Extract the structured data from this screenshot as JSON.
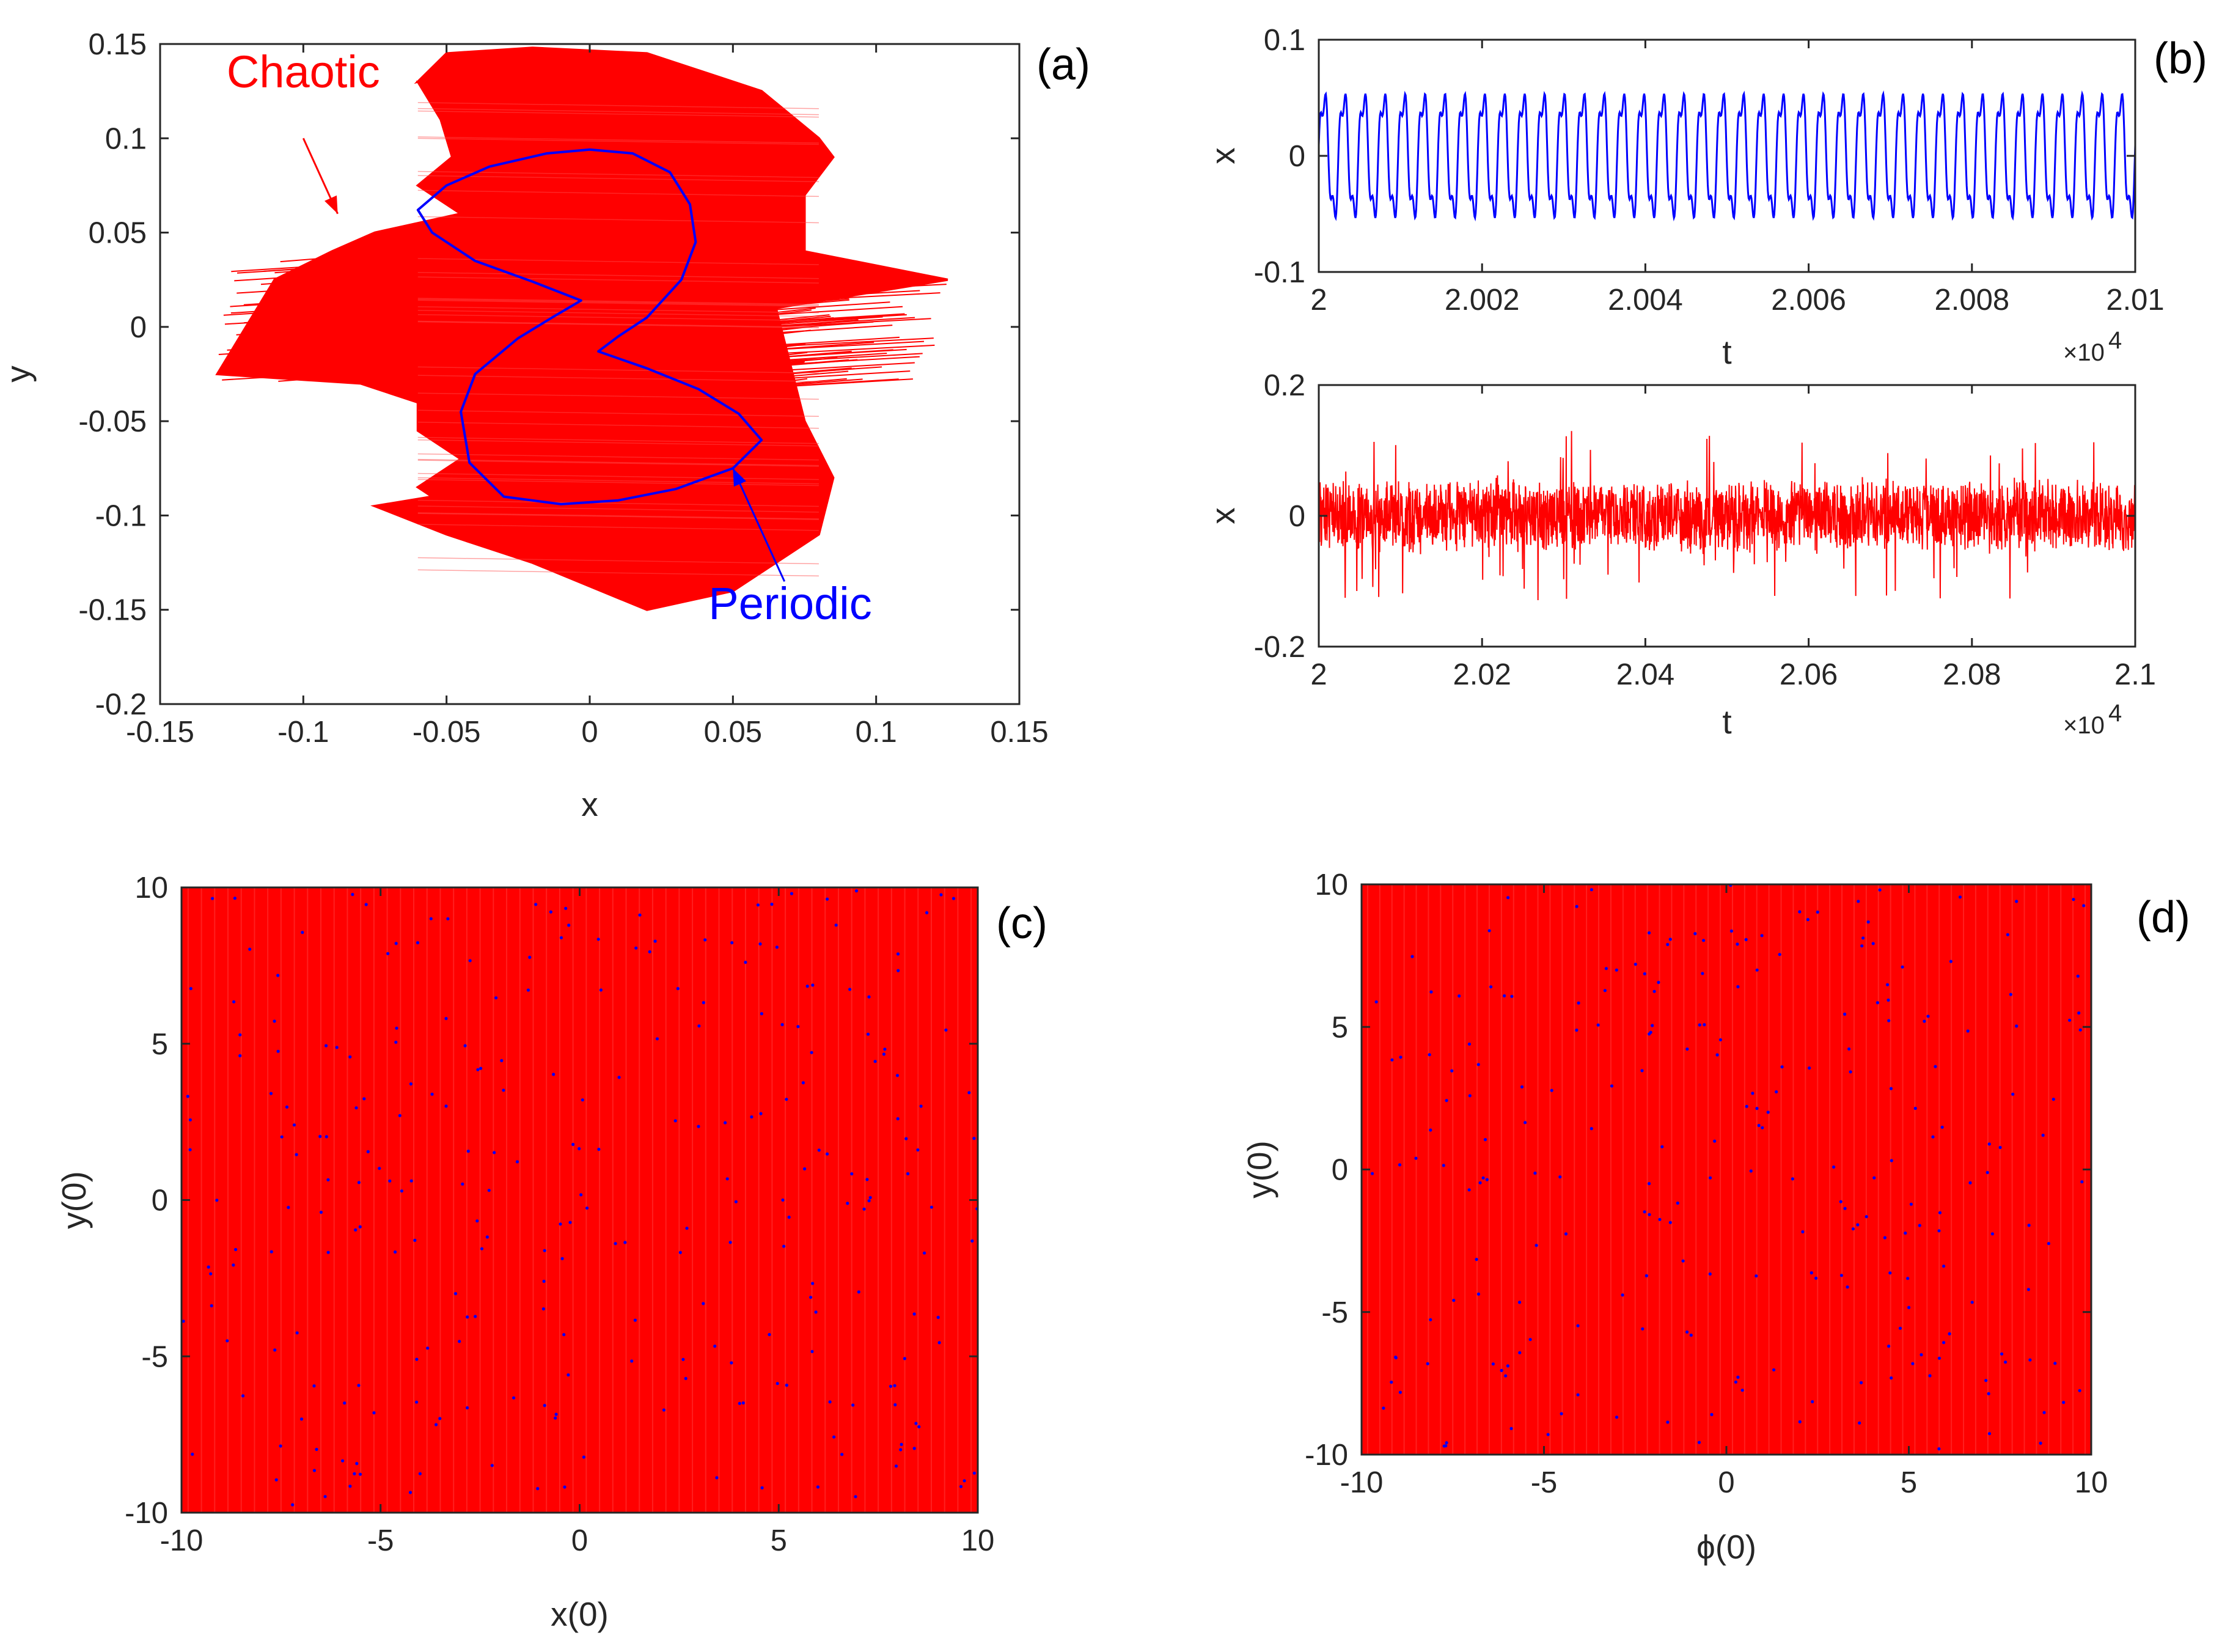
{
  "colors": {
    "periodic": "#0000ff",
    "chaotic": "#ff0000",
    "axis": "#262626"
  },
  "chart_data": [
    {
      "panel": "a",
      "label": "(a)",
      "type": "line",
      "title": "",
      "xlabel": "x",
      "ylabel": "y",
      "xlim": [
        -0.15,
        0.15
      ],
      "ylim": [
        -0.2,
        0.15
      ],
      "xticks": [
        -0.15,
        -0.1,
        -0.05,
        0,
        0.05,
        0.1,
        0.15
      ],
      "xtick_labels": [
        "-0.15",
        "-0.1",
        "-0.05",
        "0",
        "0.05",
        "0.1",
        "0.15"
      ],
      "yticks": [
        -0.2,
        -0.15,
        -0.1,
        -0.05,
        0,
        0.05,
        0.1,
        0.15
      ],
      "ytick_labels": [
        "-0.2",
        "-0.15",
        "-0.1",
        "-0.05",
        "0",
        "0.05",
        "0.1",
        "0.15"
      ],
      "series": [
        {
          "name": "Chaotic",
          "color": "#ff0000",
          "x": [
            0.0,
            -0.06,
            -0.052,
            -0.048,
            -0.06,
            -0.045,
            -0.075,
            -0.09,
            -0.11,
            -0.13,
            -0.08,
            -0.06,
            -0.06,
            -0.045,
            -0.06,
            -0.055,
            -0.075,
            -0.05,
            -0.02,
            0.02,
            0.05,
            0.08,
            0.085,
            0.075,
            0.07,
            0.065,
            0.125,
            0.075,
            0.075,
            0.085,
            0.08,
            0.06,
            0.02,
            -0.02,
            -0.05,
            -0.06,
            -0.045,
            0.0
          ],
          "y": [
            0.145,
            0.13,
            0.11,
            0.09,
            0.075,
            0.06,
            0.05,
            0.04,
            0.025,
            -0.025,
            -0.03,
            -0.04,
            -0.055,
            -0.07,
            -0.085,
            -0.09,
            -0.095,
            -0.11,
            -0.125,
            -0.15,
            -0.14,
            -0.11,
            -0.08,
            -0.05,
            -0.02,
            0.01,
            0.025,
            0.04,
            0.07,
            0.09,
            0.1,
            0.125,
            0.145,
            0.148,
            0.145,
            0.13,
            0.135,
            0.145
          ]
        },
        {
          "name": "Periodic",
          "color": "#0000ff",
          "x": [
            -0.06,
            -0.05,
            -0.035,
            -0.015,
            0.0,
            0.015,
            0.028,
            0.035,
            0.037,
            0.032,
            0.02,
            0.01,
            0.003,
            0.02,
            0.038,
            0.052,
            0.06,
            0.05,
            0.03,
            0.01,
            -0.01,
            -0.03,
            -0.042,
            -0.045,
            -0.04,
            -0.025,
            -0.012,
            -0.003,
            -0.02,
            -0.04,
            -0.055,
            -0.06
          ],
          "y": [
            0.062,
            0.075,
            0.085,
            0.092,
            0.094,
            0.092,
            0.082,
            0.065,
            0.045,
            0.025,
            0.005,
            -0.005,
            -0.013,
            -0.022,
            -0.033,
            -0.046,
            -0.06,
            -0.075,
            -0.086,
            -0.092,
            -0.094,
            -0.09,
            -0.072,
            -0.045,
            -0.025,
            -0.006,
            0.006,
            0.014,
            0.024,
            0.035,
            0.05,
            0.062
          ]
        }
      ],
      "annotations": [
        {
          "text": "Chaotic",
          "color": "#ff0000",
          "text_at": [
            -0.1,
            0.127
          ],
          "arrow_from": [
            -0.1,
            0.1
          ],
          "arrow_to": [
            -0.088,
            0.06
          ]
        },
        {
          "text": "Periodic",
          "color": "#0000ff",
          "text_at": [
            0.07,
            -0.155
          ],
          "arrow_from": [
            0.068,
            -0.135
          ],
          "arrow_to": [
            0.05,
            -0.075
          ]
        }
      ]
    },
    {
      "panel": "b-top",
      "label": "(b)",
      "type": "line",
      "xlabel": "t",
      "ylabel": "x",
      "x_multiplier": "×10",
      "x_multiplier_exponent": "4",
      "xlim": [
        2.0,
        2.01
      ],
      "ylim": [
        -0.1,
        0.1
      ],
      "xticks": [
        2.0,
        2.002,
        2.004,
        2.006,
        2.008,
        2.01
      ],
      "xtick_labels": [
        "2",
        "2.002",
        "2.004",
        "2.006",
        "2.008",
        "2.01"
      ],
      "yticks": [
        -0.1,
        0,
        0.1
      ],
      "ytick_labels": [
        "-0.1",
        "0",
        "0.1"
      ],
      "series": [
        {
          "name": "Periodic",
          "color": "#0000ff",
          "kind": "periodic",
          "amplitude": 0.06,
          "cycles": 41,
          "offset": -0.02,
          "samples": 1400
        }
      ]
    },
    {
      "panel": "b-bottom",
      "label": "",
      "type": "line",
      "xlabel": "t",
      "ylabel": "x",
      "x_multiplier": "×10",
      "x_multiplier_exponent": "4",
      "xlim": [
        2.0,
        2.1
      ],
      "ylim": [
        -0.2,
        0.2
      ],
      "xticks": [
        2.0,
        2.02,
        2.04,
        2.06,
        2.08,
        2.1
      ],
      "xtick_labels": [
        "2",
        "2.02",
        "2.04",
        "2.06",
        "2.08",
        "2.1"
      ],
      "yticks": [
        -0.2,
        0,
        0.2
      ],
      "ytick_labels": [
        "-0.2",
        "0",
        "0.2"
      ],
      "series": [
        {
          "name": "Chaotic",
          "color": "#ff0000",
          "kind": "chaotic",
          "amplitude": 0.06,
          "peak": 0.13,
          "samples": 2600
        }
      ]
    },
    {
      "panel": "c",
      "label": "(c)",
      "type": "heatmap",
      "xlabel": "x(0)",
      "ylabel": "y(0)",
      "xlim": [
        -10,
        10
      ],
      "ylim": [
        -10,
        10
      ],
      "xticks": [
        -10,
        -5,
        0,
        5,
        10
      ],
      "xtick_labels": [
        "-10",
        "-5",
        "0",
        "5",
        "10"
      ],
      "yticks": [
        -10,
        -5,
        0,
        5,
        10
      ],
      "ytick_labels": [
        "-10",
        "-5",
        "0",
        "5",
        "10"
      ],
      "background_class": "Chaotic",
      "background_color": "#ff0000",
      "dot_class": "Periodic",
      "dot_color": "#0000ff",
      "dot_count": 260
    },
    {
      "panel": "d",
      "label": "(d)",
      "type": "heatmap",
      "xlabel": "ϕ(0)",
      "ylabel": "y(0)",
      "xlim": [
        -10,
        10
      ],
      "ylim": [
        -10,
        10
      ],
      "xticks": [
        -10,
        -5,
        0,
        5,
        10
      ],
      "xtick_labels": [
        "-10",
        "-5",
        "0",
        "5",
        "10"
      ],
      "yticks": [
        -10,
        -5,
        0,
        5,
        10
      ],
      "ytick_labels": [
        "-10",
        "-5",
        "0",
        "5",
        "10"
      ],
      "background_class": "Chaotic",
      "background_color": "#ff0000",
      "dot_class": "Periodic",
      "dot_color": "#0000ff",
      "dot_count": 230
    }
  ]
}
